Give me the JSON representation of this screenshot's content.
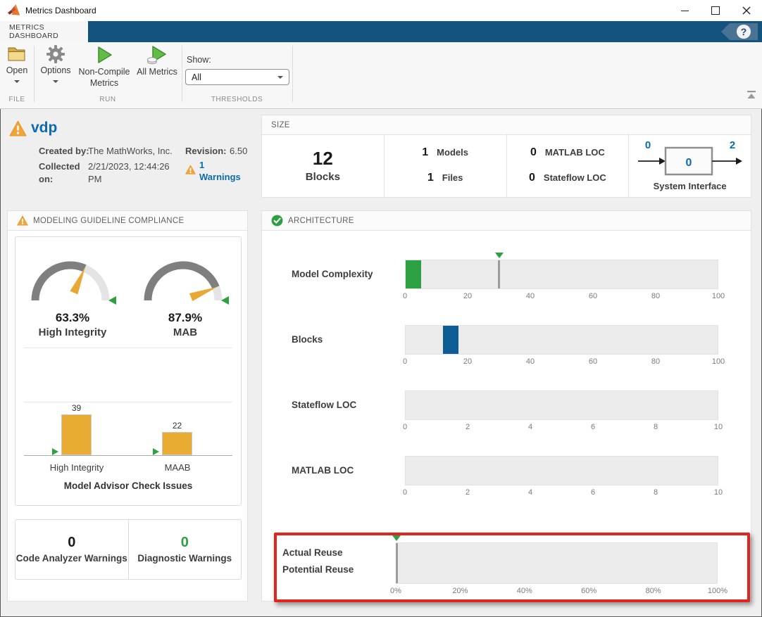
{
  "window": {
    "title": "Metrics Dashboard"
  },
  "tab": {
    "label": "METRICS DASHBOARD"
  },
  "toolbar": {
    "open_label": "Open",
    "options_label": "Options",
    "non_compile_label": "Non-Compile Metrics",
    "all_metrics_label": "All Metrics",
    "show_label": "Show:",
    "show_value": "All",
    "groups": {
      "file": "FILE",
      "run": "RUN",
      "thresholds": "THRESHOLDS"
    }
  },
  "model": {
    "name": "vdp",
    "created_by_label": "Created by:",
    "created_by": "The MathWorks, Inc.",
    "revision_label": "Revision:",
    "revision": "6.50",
    "collected_on_label": "Collected on:",
    "collected_on": "2/21/2023, 12:44:26 PM",
    "warnings_count": "1",
    "warnings_word": "Warnings"
  },
  "size_panel": {
    "title": "SIZE",
    "blocks": {
      "value": "12",
      "label": "Blocks"
    },
    "models": {
      "value": "1",
      "label": "Models"
    },
    "files": {
      "value": "1",
      "label": "Files"
    },
    "matlab_loc": {
      "value": "0",
      "label": "MATLAB LOC"
    },
    "stateflow_loc": {
      "value": "0",
      "label": "Stateflow LOC"
    },
    "interface": {
      "inputs": "0",
      "inner": "0",
      "outputs": "2",
      "label": "System Interface"
    }
  },
  "compliance_panel": {
    "title": "MODELING GUIDELINE COMPLIANCE",
    "gauges": [
      {
        "value": 63.3,
        "display": "63.3%",
        "label": "High Integrity"
      },
      {
        "value": 87.9,
        "display": "87.9%",
        "label": "MAB"
      }
    ],
    "bar_chart": {
      "title": "Model Advisor Check Issues",
      "bars": [
        {
          "label": "High Integrity",
          "value": 39
        },
        {
          "label": "MAAB",
          "value": 22
        }
      ]
    },
    "counters": [
      {
        "value": "0",
        "label": "Code Analyzer Warnings",
        "color": "#1a1a1a"
      },
      {
        "value": "0",
        "label": "Diagnostic Warnings",
        "color": "#2DA042"
      }
    ]
  },
  "architecture_panel": {
    "title": "ARCHITECTURE",
    "rows": [
      {
        "label": "Model Complexity",
        "axis_max": 100,
        "ticks": [
          "0",
          "20",
          "40",
          "60",
          "80",
          "100"
        ],
        "bar": {
          "from": 0,
          "to": 5,
          "color": "#2DA042"
        },
        "threshold": 30
      },
      {
        "label": "Blocks",
        "axis_max": 100,
        "ticks": [
          "0",
          "20",
          "40",
          "60",
          "80",
          "100"
        ],
        "bar": {
          "from": 12,
          "to": 17,
          "color": "#0D5C94"
        },
        "threshold": null
      },
      {
        "label": "Stateflow LOC",
        "axis_max": 10,
        "ticks": [
          "0",
          "2",
          "4",
          "6",
          "8",
          "10"
        ],
        "bar": null,
        "threshold": null
      },
      {
        "label": "MATLAB LOC",
        "axis_max": 10,
        "ticks": [
          "0",
          "2",
          "4",
          "6",
          "8",
          "10"
        ],
        "bar": null,
        "threshold": null
      }
    ],
    "reuse": {
      "labels": [
        "Actual Reuse",
        "Potential Reuse"
      ],
      "axis_max": 100,
      "ticks": [
        "0%",
        "20%",
        "40%",
        "60%",
        "80%",
        "100%"
      ],
      "threshold": 0
    }
  },
  "colors": {
    "accent_blue": "#0B6BAE",
    "green": "#2DA042",
    "warning_orange": "#F2A33C",
    "bar_orange": "#E9AC33",
    "bar_blue": "#0D5C94",
    "tabstrip_blue": "#14537E",
    "highlight_red": "#E02420"
  }
}
